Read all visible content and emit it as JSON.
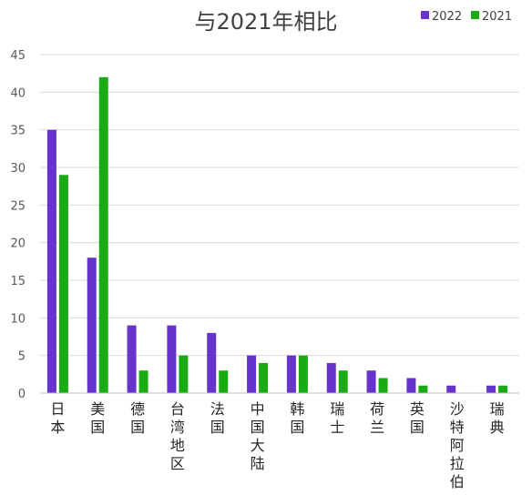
{
  "chart_data": {
    "type": "bar",
    "title": "与2021年相比",
    "xlabel": "",
    "ylabel": "",
    "categories": [
      "日本",
      "美国",
      "德国",
      "台湾地区",
      "法国",
      "中国大陆",
      "韩国",
      "瑞士",
      "荷兰",
      "英国",
      "沙特阿拉伯",
      "瑞典"
    ],
    "series": [
      {
        "name": "2022",
        "color": "#6633cc",
        "values": [
          35,
          18,
          9,
          9,
          8,
          5,
          5,
          4,
          3,
          2,
          1,
          1
        ]
      },
      {
        "name": "2021",
        "color": "#1aaa14",
        "values": [
          29,
          42,
          3,
          5,
          3,
          4,
          5,
          3,
          2,
          1,
          0,
          1
        ]
      }
    ],
    "ylim": [
      0,
      45
    ],
    "yticks": [
      0,
      5,
      10,
      15,
      20,
      25,
      30,
      35,
      40,
      45
    ],
    "grid": true,
    "legend": "top-right"
  }
}
